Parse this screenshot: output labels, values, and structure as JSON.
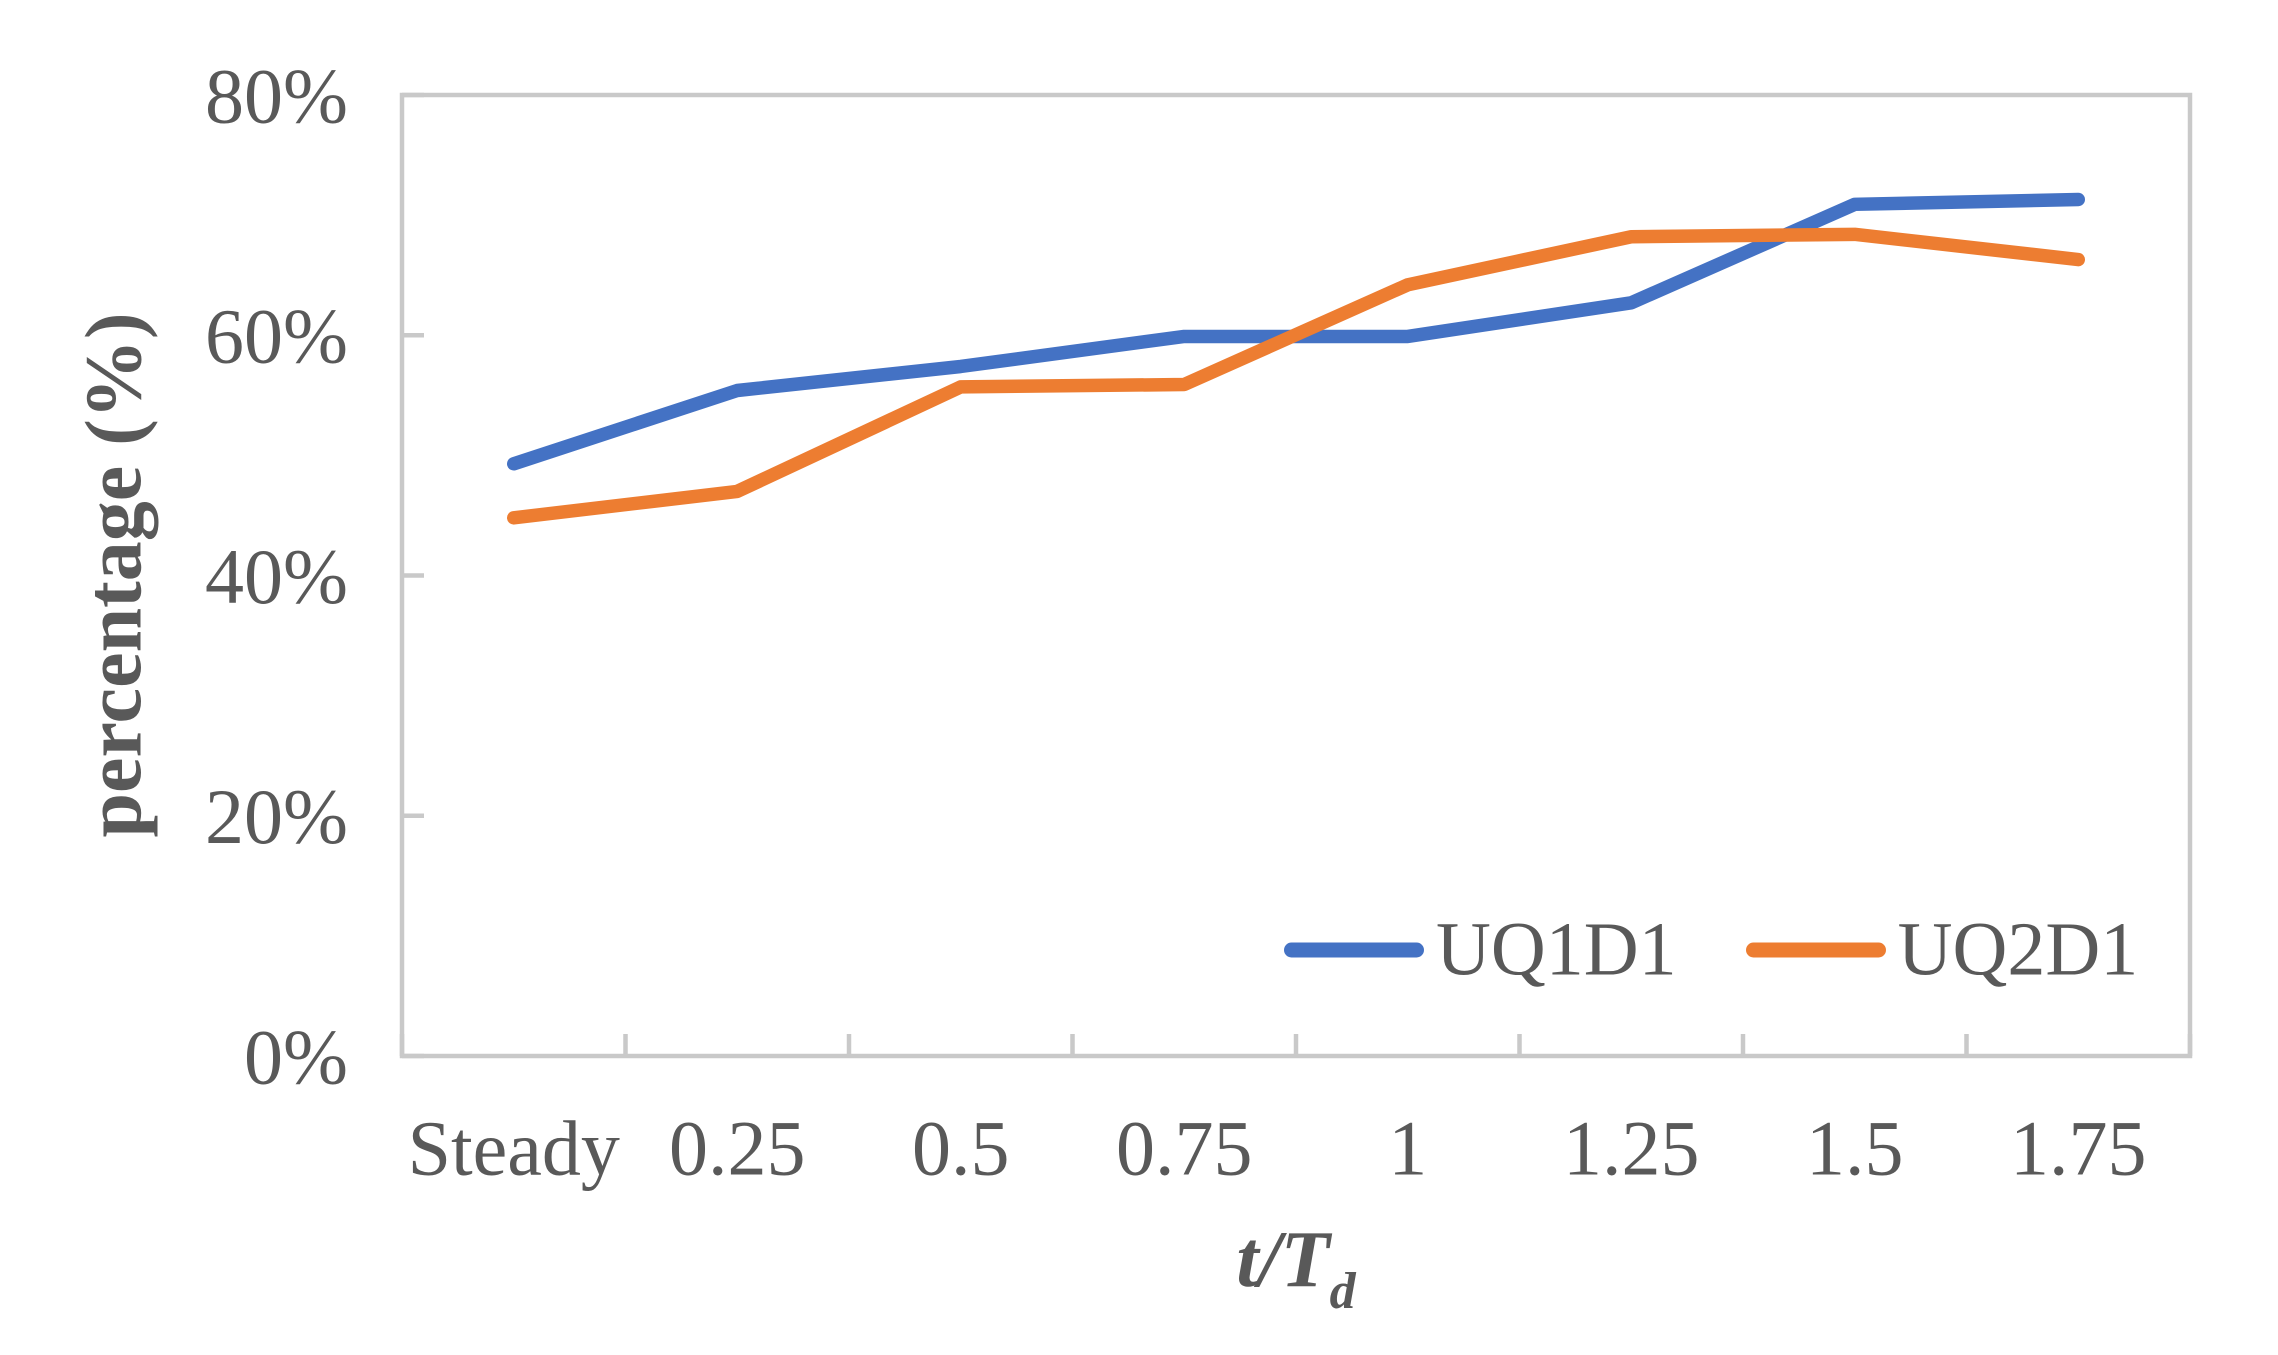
{
  "chart_data": {
    "type": "line",
    "title": "",
    "ylabel": "percentage (%)",
    "xlabel_main": "t/T",
    "xlabel_sub": "d",
    "categories": [
      "Steady",
      "0.25",
      "0.5",
      "0.75",
      "1",
      "1.25",
      "1.5",
      "1.75"
    ],
    "series": [
      {
        "name": "UQ1D1",
        "color": "#4472C4",
        "values": [
          49.3,
          55.4,
          57.4,
          59.9,
          59.9,
          62.7,
          70.9,
          71.3
        ]
      },
      {
        "name": "UQ2D1",
        "color": "#ED7D31",
        "values": [
          44.8,
          47.0,
          55.7,
          55.9,
          64.2,
          68.2,
          68.4,
          66.3
        ]
      }
    ],
    "y_ticks": [
      {
        "label": "0%",
        "value": 0
      },
      {
        "label": "20%",
        "value": 20
      },
      {
        "label": "40%",
        "value": 40
      },
      {
        "label": "60%",
        "value": 60
      },
      {
        "label": "80%",
        "value": 80
      }
    ],
    "ylim": [
      0,
      80
    ],
    "grid": false,
    "legend_position": "inside-bottom-right",
    "axis_color": "#C9C9C9",
    "text_color": "#595959",
    "background_color": "#FFFFFF"
  }
}
